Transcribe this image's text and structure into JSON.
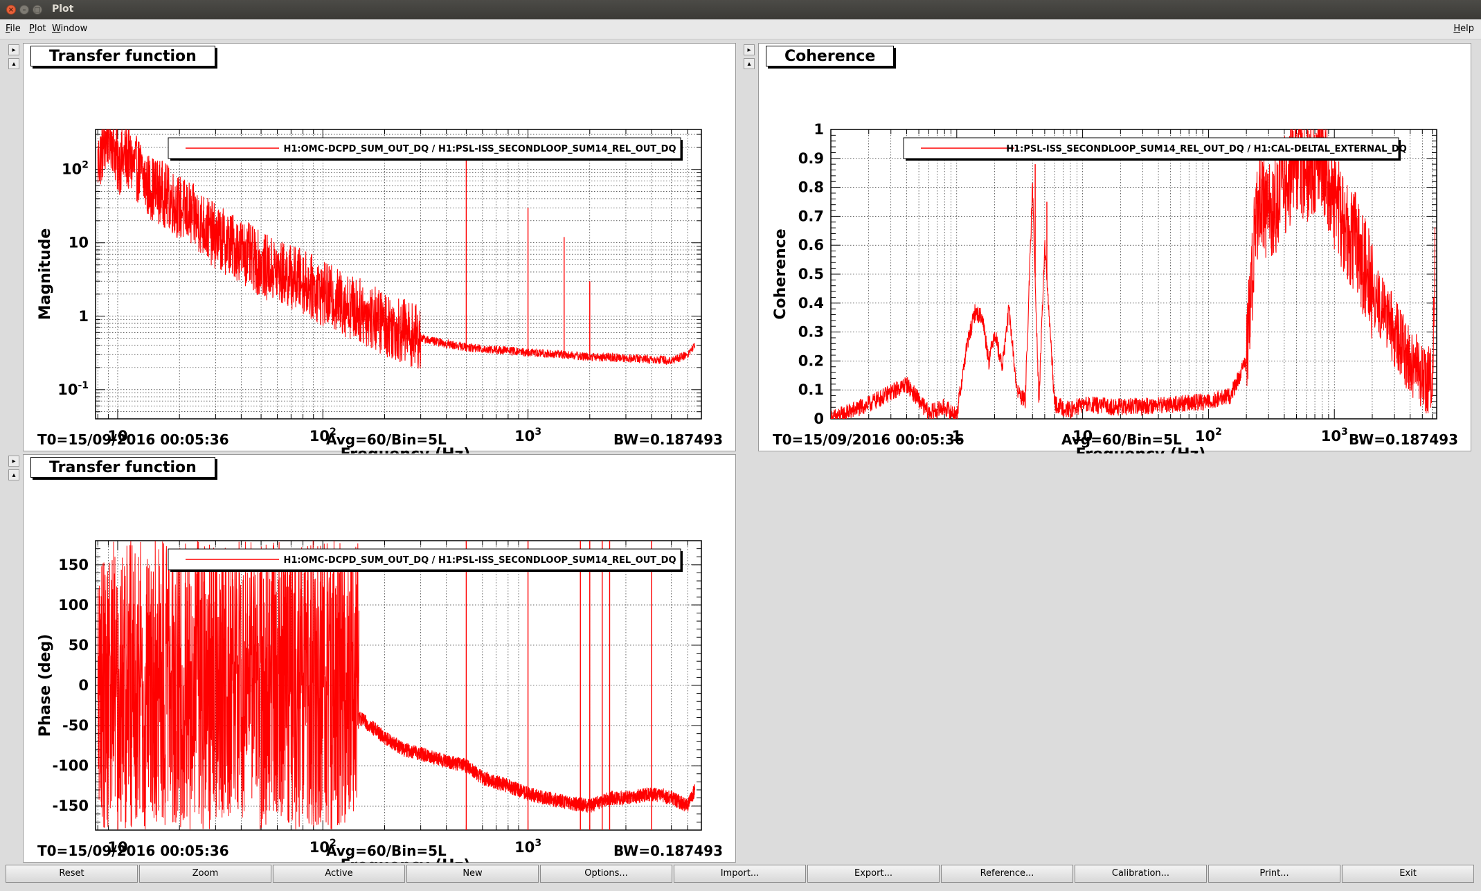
{
  "window": {
    "title": "Plot",
    "controls": {
      "close": "×",
      "minimize": "–",
      "maximize": "□"
    }
  },
  "menu": [
    {
      "label": "File",
      "key": "F"
    },
    {
      "label": "Plot",
      "key": "P"
    },
    {
      "label": "Window",
      "key": "W"
    },
    {
      "label": "Help",
      "key": "H"
    }
  ],
  "panels": {
    "tf_mag": {
      "title": "Transfer function",
      "legend": "H1:OMC-DCPD_SUM_OUT_DQ / H1:PSL-ISS_SECONDLOOP_SUM14_REL_OUT_DQ",
      "ylabel": "Magnitude",
      "xlabel": "Frequency (Hz)",
      "t0": "T0=15/09/2016 00:05:36",
      "avg": "Avg=60/Bin=5L",
      "bw": "BW=0.187493"
    },
    "coh": {
      "title": "Coherence",
      "legend": "H1:PSL-ISS_SECONDLOOP_SUM14_REL_OUT_DQ / H1:CAL-DELTAL_EXTERNAL_DQ",
      "ylabel": "Coherence",
      "xlabel": "Frequency (Hz)",
      "t0": "T0=15/09/2016 00:05:36",
      "avg": "Avg=60/Bin=5L",
      "bw": "BW=0.187493"
    },
    "tf_phase": {
      "title": "Transfer function",
      "legend": "H1:OMC-DCPD_SUM_OUT_DQ / H1:PSL-ISS_SECONDLOOP_SUM14_REL_OUT_DQ",
      "ylabel": "Phase (deg)",
      "xlabel": "Frequency (Hz)",
      "t0": "T0=15/09/2016 00:05:36",
      "avg": "Avg=60/Bin=5L",
      "bw": "BW=0.187493"
    }
  },
  "bottom_buttons": [
    "Reset",
    "Zoom",
    "Active",
    "New",
    "Options...",
    "Import...",
    "Export...",
    "Reference...",
    "Calibration...",
    "Print...",
    "Exit"
  ],
  "colors": {
    "trace": "#ff0000",
    "grid": "#000000"
  },
  "chart_data": [
    {
      "id": "tf_mag",
      "type": "line",
      "x_scale": "log",
      "y_scale": "log",
      "xlim": [
        7.8,
        7000
      ],
      "ylim": [
        0.04,
        350
      ],
      "x_ticks": [
        {
          "v": 10,
          "l": "10"
        },
        {
          "v": 100,
          "b": "10",
          "e": "2"
        },
        {
          "v": 1000,
          "b": "10",
          "e": "3"
        }
      ],
      "y_ticks": [
        {
          "v": 0.1,
          "b": "10",
          "e": "-1"
        },
        {
          "v": 1,
          "l": "1"
        },
        {
          "v": 10,
          "l": "10"
        },
        {
          "v": 100,
          "b": "10",
          "e": "2"
        }
      ],
      "series": [
        {
          "name": "H1:OMC-DCPD_SUM_OUT_DQ / H1:PSL-ISS_SECONDLOOP_SUM14_REL_OUT_DQ",
          "x": [
            8,
            8.5,
            9,
            9.5,
            10,
            11,
            12,
            13,
            14,
            15,
            17,
            20,
            25,
            30,
            40,
            50,
            60,
            80,
            100,
            150,
            200,
            300,
            400,
            500,
            600,
            800,
            1000,
            1500,
            2000,
            3000,
            4000,
            5000,
            6000,
            6500
          ],
          "y": [
            120,
            200,
            300,
            250,
            120,
            150,
            110,
            90,
            60,
            55,
            45,
            30,
            20,
            12,
            8,
            5,
            4,
            3,
            2,
            1.2,
            0.8,
            0.5,
            0.42,
            0.38,
            0.36,
            0.34,
            0.32,
            0.3,
            0.28,
            0.27,
            0.26,
            0.25,
            0.3,
            0.4
          ]
        }
      ],
      "spikes": [
        {
          "x": 500,
          "y": 150
        },
        {
          "x": 1000,
          "y": 30
        },
        {
          "x": 1500,
          "y": 12
        },
        {
          "x": 2000,
          "y": 3
        }
      ]
    },
    {
      "id": "coh",
      "type": "line",
      "x_scale": "log",
      "y_scale": "linear",
      "xlim": [
        0.1,
        6500
      ],
      "ylim": [
        0,
        1
      ],
      "x_ticks": [
        {
          "v": 1,
          "l": "1"
        },
        {
          "v": 10,
          "l": "10"
        },
        {
          "v": 100,
          "b": "10",
          "e": "2"
        },
        {
          "v": 1000,
          "b": "10",
          "e": "3"
        }
      ],
      "y_ticks": [
        {
          "v": 0,
          "l": "0"
        },
        {
          "v": 0.1,
          "l": "0.1"
        },
        {
          "v": 0.2,
          "l": "0.2"
        },
        {
          "v": 0.3,
          "l": "0.3"
        },
        {
          "v": 0.4,
          "l": "0.4"
        },
        {
          "v": 0.5,
          "l": "0.5"
        },
        {
          "v": 0.6,
          "l": "0.6"
        },
        {
          "v": 0.7,
          "l": "0.7"
        },
        {
          "v": 0.8,
          "l": "0.8"
        },
        {
          "v": 0.9,
          "l": "0.9"
        },
        {
          "v": 1,
          "l": "1"
        }
      ],
      "series": [
        {
          "name": "H1:PSL-ISS_SECONDLOOP_SUM14_REL_OUT_DQ / H1:CAL-DELTAL_EXTERNAL_DQ",
          "x": [
            0.1,
            0.2,
            0.4,
            0.6,
            0.8,
            1.0,
            1.2,
            1.4,
            1.6,
            1.8,
            2.0,
            2.3,
            2.6,
            3.0,
            3.5,
            4.0,
            4.5,
            5.0,
            6,
            8,
            10,
            20,
            50,
            100,
            150,
            200,
            230,
            260,
            300,
            400,
            500,
            600,
            800,
            1000,
            1500,
            2000,
            3000,
            4000,
            5000,
            6000,
            6300
          ],
          "y": [
            0.0,
            0.05,
            0.12,
            0.02,
            0.04,
            0.01,
            0.25,
            0.37,
            0.35,
            0.2,
            0.3,
            0.18,
            0.38,
            0.1,
            0.06,
            0.8,
            0.05,
            0.6,
            0.05,
            0.03,
            0.05,
            0.04,
            0.05,
            0.06,
            0.08,
            0.2,
            0.6,
            0.8,
            0.7,
            0.8,
            0.9,
            0.85,
            0.9,
            0.75,
            0.6,
            0.45,
            0.3,
            0.2,
            0.15,
            0.12,
            0.55
          ]
        }
      ],
      "spikes": [
        {
          "x": 4.2,
          "y": 0.88
        },
        {
          "x": 5.2,
          "y": 0.75
        },
        {
          "x": 700,
          "y": 0.9
        }
      ]
    },
    {
      "id": "tf_phase",
      "type": "line",
      "x_scale": "log",
      "y_scale": "linear",
      "xlim": [
        7.8,
        7000
      ],
      "ylim": [
        -180,
        180
      ],
      "x_ticks": [
        {
          "v": 10,
          "l": "10"
        },
        {
          "v": 100,
          "b": "10",
          "e": "2"
        },
        {
          "v": 1000,
          "b": "10",
          "e": "3"
        }
      ],
      "y_ticks": [
        {
          "v": -150,
          "l": "-150"
        },
        {
          "v": -100,
          "l": "-100"
        },
        {
          "v": -50,
          "l": "-50"
        },
        {
          "v": 0,
          "l": "0"
        },
        {
          "v": 50,
          "l": "50"
        },
        {
          "v": 100,
          "l": "100"
        },
        {
          "v": 150,
          "l": "150"
        }
      ],
      "series": [
        {
          "name": "H1:OMC-DCPD_SUM_OUT_DQ / H1:PSL-ISS_SECONDLOOP_SUM14_REL_OUT_DQ",
          "x": [
            150,
            180,
            200,
            250,
            300,
            400,
            500,
            600,
            800,
            1000,
            1500,
            2000,
            2500,
            3000,
            4000,
            5000,
            6000,
            6500
          ],
          "y": [
            -40,
            -55,
            -65,
            -80,
            -85,
            -95,
            -100,
            -115,
            -125,
            -135,
            -145,
            -150,
            -140,
            -140,
            -135,
            -140,
            -150,
            -130
          ]
        }
      ],
      "wrapped_region": [
        8,
        150
      ],
      "spikes": [
        {
          "x": 500,
          "y": 180
        },
        {
          "x": 1000,
          "y": 180
        },
        {
          "x": 1800,
          "y": 180
        },
        {
          "x": 2000,
          "y": 180
        },
        {
          "x": 2300,
          "y": 180
        },
        {
          "x": 2500,
          "y": 180
        },
        {
          "x": 4000,
          "y": 180
        }
      ]
    }
  ]
}
